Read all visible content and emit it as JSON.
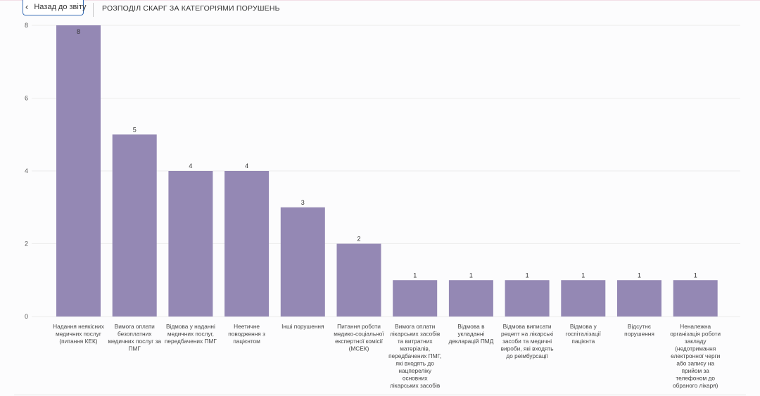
{
  "header": {
    "back_label": "Назад до звіту",
    "back_icon": "chevron-left-icon",
    "title": "РОЗПОДІЛ СКАРГ ЗА КАТЕГОРІЯМИ ПОРУШЕНЬ"
  },
  "colors": {
    "bar": "#9488b4",
    "grid": "#ececec",
    "back_button_border": "#3b6fb6"
  },
  "chart_data": {
    "type": "bar",
    "title": "",
    "xlabel": "",
    "ylabel": "",
    "ylim": [
      0,
      8
    ],
    "y_ticks": [
      0,
      2,
      4,
      6,
      8
    ],
    "grid": true,
    "data_labels": true,
    "categories": [
      [
        "Надання неякісних",
        "медичних послуг",
        "(питання КЕК)"
      ],
      [
        "Вимога оплати",
        "безоплатних",
        "медичних послуг за",
        "ПМГ"
      ],
      [
        "Відмова у наданні",
        "медичних послуг,",
        "передбачених ПМГ"
      ],
      [
        "Неетичне",
        "поводження з",
        "пацієнтом"
      ],
      [
        "Інші порушення"
      ],
      [
        "Питання роботи",
        "медико-соціальної",
        "експертної комісії",
        "(МСЕК)"
      ],
      [
        "Вимога оплати",
        "лікарських засобів",
        "та витратних",
        "матеріалів,",
        "передбачених ПМГ,",
        "які входять до",
        "нацпереліку",
        "основних",
        "лікарських засобів"
      ],
      [
        "Відмова в",
        "укладанні",
        "декларацій ПМД"
      ],
      [
        "Відмова виписати",
        "рецепт на лікарські",
        "засоби та медичні",
        "вироби, які входять",
        "до реімбурсації"
      ],
      [
        "Відмова у",
        "госпіталізації",
        "пацієнта"
      ],
      [
        "Відсутнє",
        "порушення"
      ],
      [
        "Неналежна",
        "організація роботи",
        "закладу",
        "(недотримання",
        "електронної черги",
        "або запису на",
        "прийом за",
        "телефоном до",
        "обраного лікаря)"
      ]
    ],
    "values": [
      8,
      5,
      4,
      4,
      3,
      2,
      1,
      1,
      1,
      1,
      1,
      1
    ]
  }
}
